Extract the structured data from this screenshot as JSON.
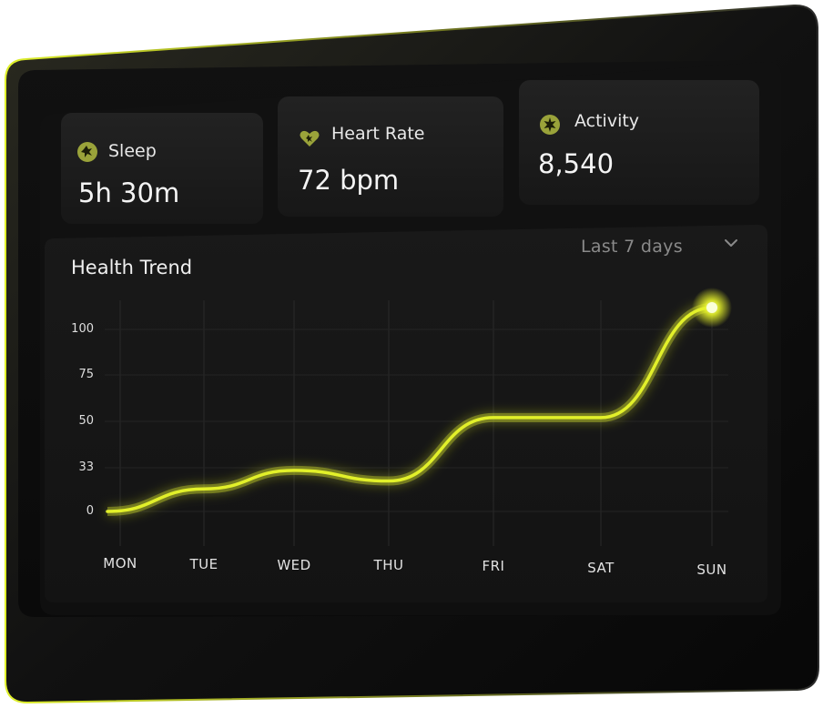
{
  "metrics": [
    {
      "label": "Sleep",
      "value": "5h 30m",
      "icon": "sleep-icon"
    },
    {
      "label": "Heart Rate",
      "value": "72 bpm",
      "icon": "heart-icon"
    },
    {
      "label": "Activity",
      "value": "8,540",
      "icon": "activity-icon"
    }
  ],
  "trend": {
    "title": "Health Trend",
    "range_selector": "Last 7 days"
  },
  "colors": {
    "accent": "#e2f02a",
    "panel": "#0e0e0e",
    "card": "#1b1b1b",
    "icon_badge": "#9aa33a"
  },
  "chart_data": {
    "type": "line",
    "title": "Health Trend",
    "x": [
      "MON",
      "TUE",
      "WED",
      "THU",
      "FRI",
      "SAT",
      "SUN"
    ],
    "y_ticks": [
      "0",
      "33",
      "50",
      "75",
      "100"
    ],
    "series": [
      {
        "values": [
          0,
          17,
          31,
          23,
          52,
          52,
          112
        ]
      }
    ],
    "grid": true,
    "legend": "none"
  }
}
